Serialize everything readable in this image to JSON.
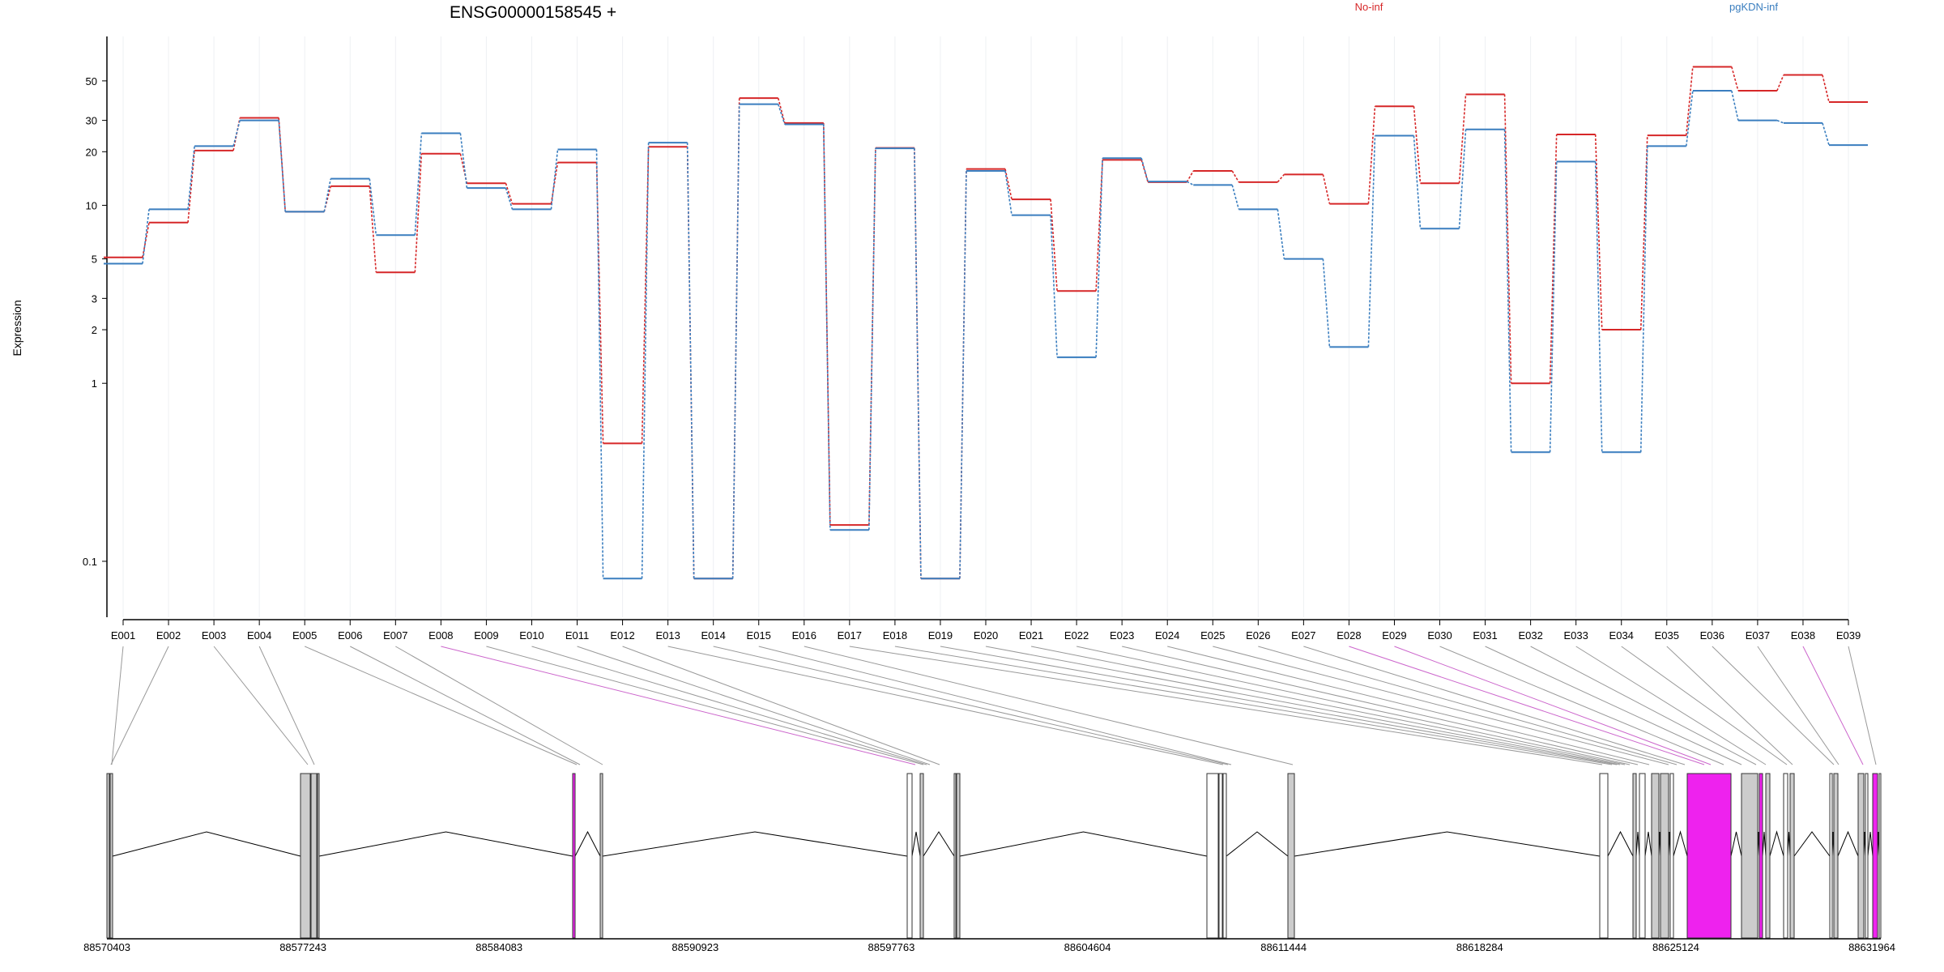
{
  "title": "ENSG00000158545 +",
  "colors": {
    "No-inf": "#d62728",
    "pgKDN-inf": "#3a7ebf",
    "exon_normal": "#cccccc",
    "exon_highlight": "#ee22ee",
    "connector": "#999999",
    "connector_highlight": "#cc66cc"
  },
  "chart_data": {
    "type": "line",
    "ylabel": "Expression",
    "yscale": "log",
    "yticks": [
      0.1,
      1,
      2,
      3,
      5,
      10,
      20,
      30,
      50
    ],
    "ytick_labels": [
      "0.1",
      "1",
      "2",
      "3",
      "5",
      "10",
      "20",
      "30",
      "50"
    ],
    "ylim": [
      0.07,
      80
    ],
    "categories": [
      "E001",
      "E002",
      "E003",
      "E004",
      "E005",
      "E006",
      "E007",
      "E008",
      "E009",
      "E010",
      "E011",
      "E012",
      "E013",
      "E014",
      "E015",
      "E016",
      "E017",
      "E018",
      "E019",
      "E020",
      "E021",
      "E022",
      "E023",
      "E024",
      "E025",
      "E026",
      "E027",
      "E028",
      "E029",
      "E030",
      "E031",
      "E032",
      "E033",
      "E034",
      "E035",
      "E036",
      "E037",
      "E038",
      "E039"
    ],
    "series": [
      {
        "name": "No-inf",
        "values": [
          5.1,
          8.0,
          20.3,
          31.0,
          9.2,
          12.8,
          4.2,
          19.5,
          13.3,
          10.2,
          17.4,
          0.46,
          21.3,
          0.08,
          40.0,
          29.0,
          0.16,
          21.0,
          0.08,
          16.0,
          10.8,
          3.3,
          18.0,
          13.5,
          15.6,
          13.5,
          14.9,
          10.2,
          36.0,
          13.3,
          42.0,
          1.0,
          25.0,
          2.0,
          24.7,
          60.0,
          44.0,
          54.0,
          38.0
        ]
      },
      {
        "name": "pgKDN-inf",
        "values": [
          4.7,
          9.5,
          21.5,
          30.0,
          9.2,
          14.1,
          6.8,
          25.4,
          12.5,
          9.5,
          20.6,
          0.08,
          22.5,
          0.08,
          37.0,
          28.5,
          0.15,
          20.9,
          0.08,
          15.6,
          8.8,
          1.4,
          18.4,
          13.6,
          13.0,
          9.5,
          5.0,
          1.6,
          24.6,
          7.4,
          26.7,
          0.41,
          17.6,
          0.41,
          21.5,
          44.0,
          30.0,
          29.0,
          21.8
        ]
      }
    ],
    "legend_position": "top-right",
    "grid": "x"
  },
  "gene_model": {
    "coordinate_labels": [
      "88570403",
      "88577243",
      "88584083",
      "88590923",
      "88597763",
      "88604604",
      "88611444",
      "88618284",
      "88625124",
      "88631964"
    ],
    "highlighted_exons": [
      "E008",
      "E028",
      "E029",
      "E038"
    ]
  }
}
